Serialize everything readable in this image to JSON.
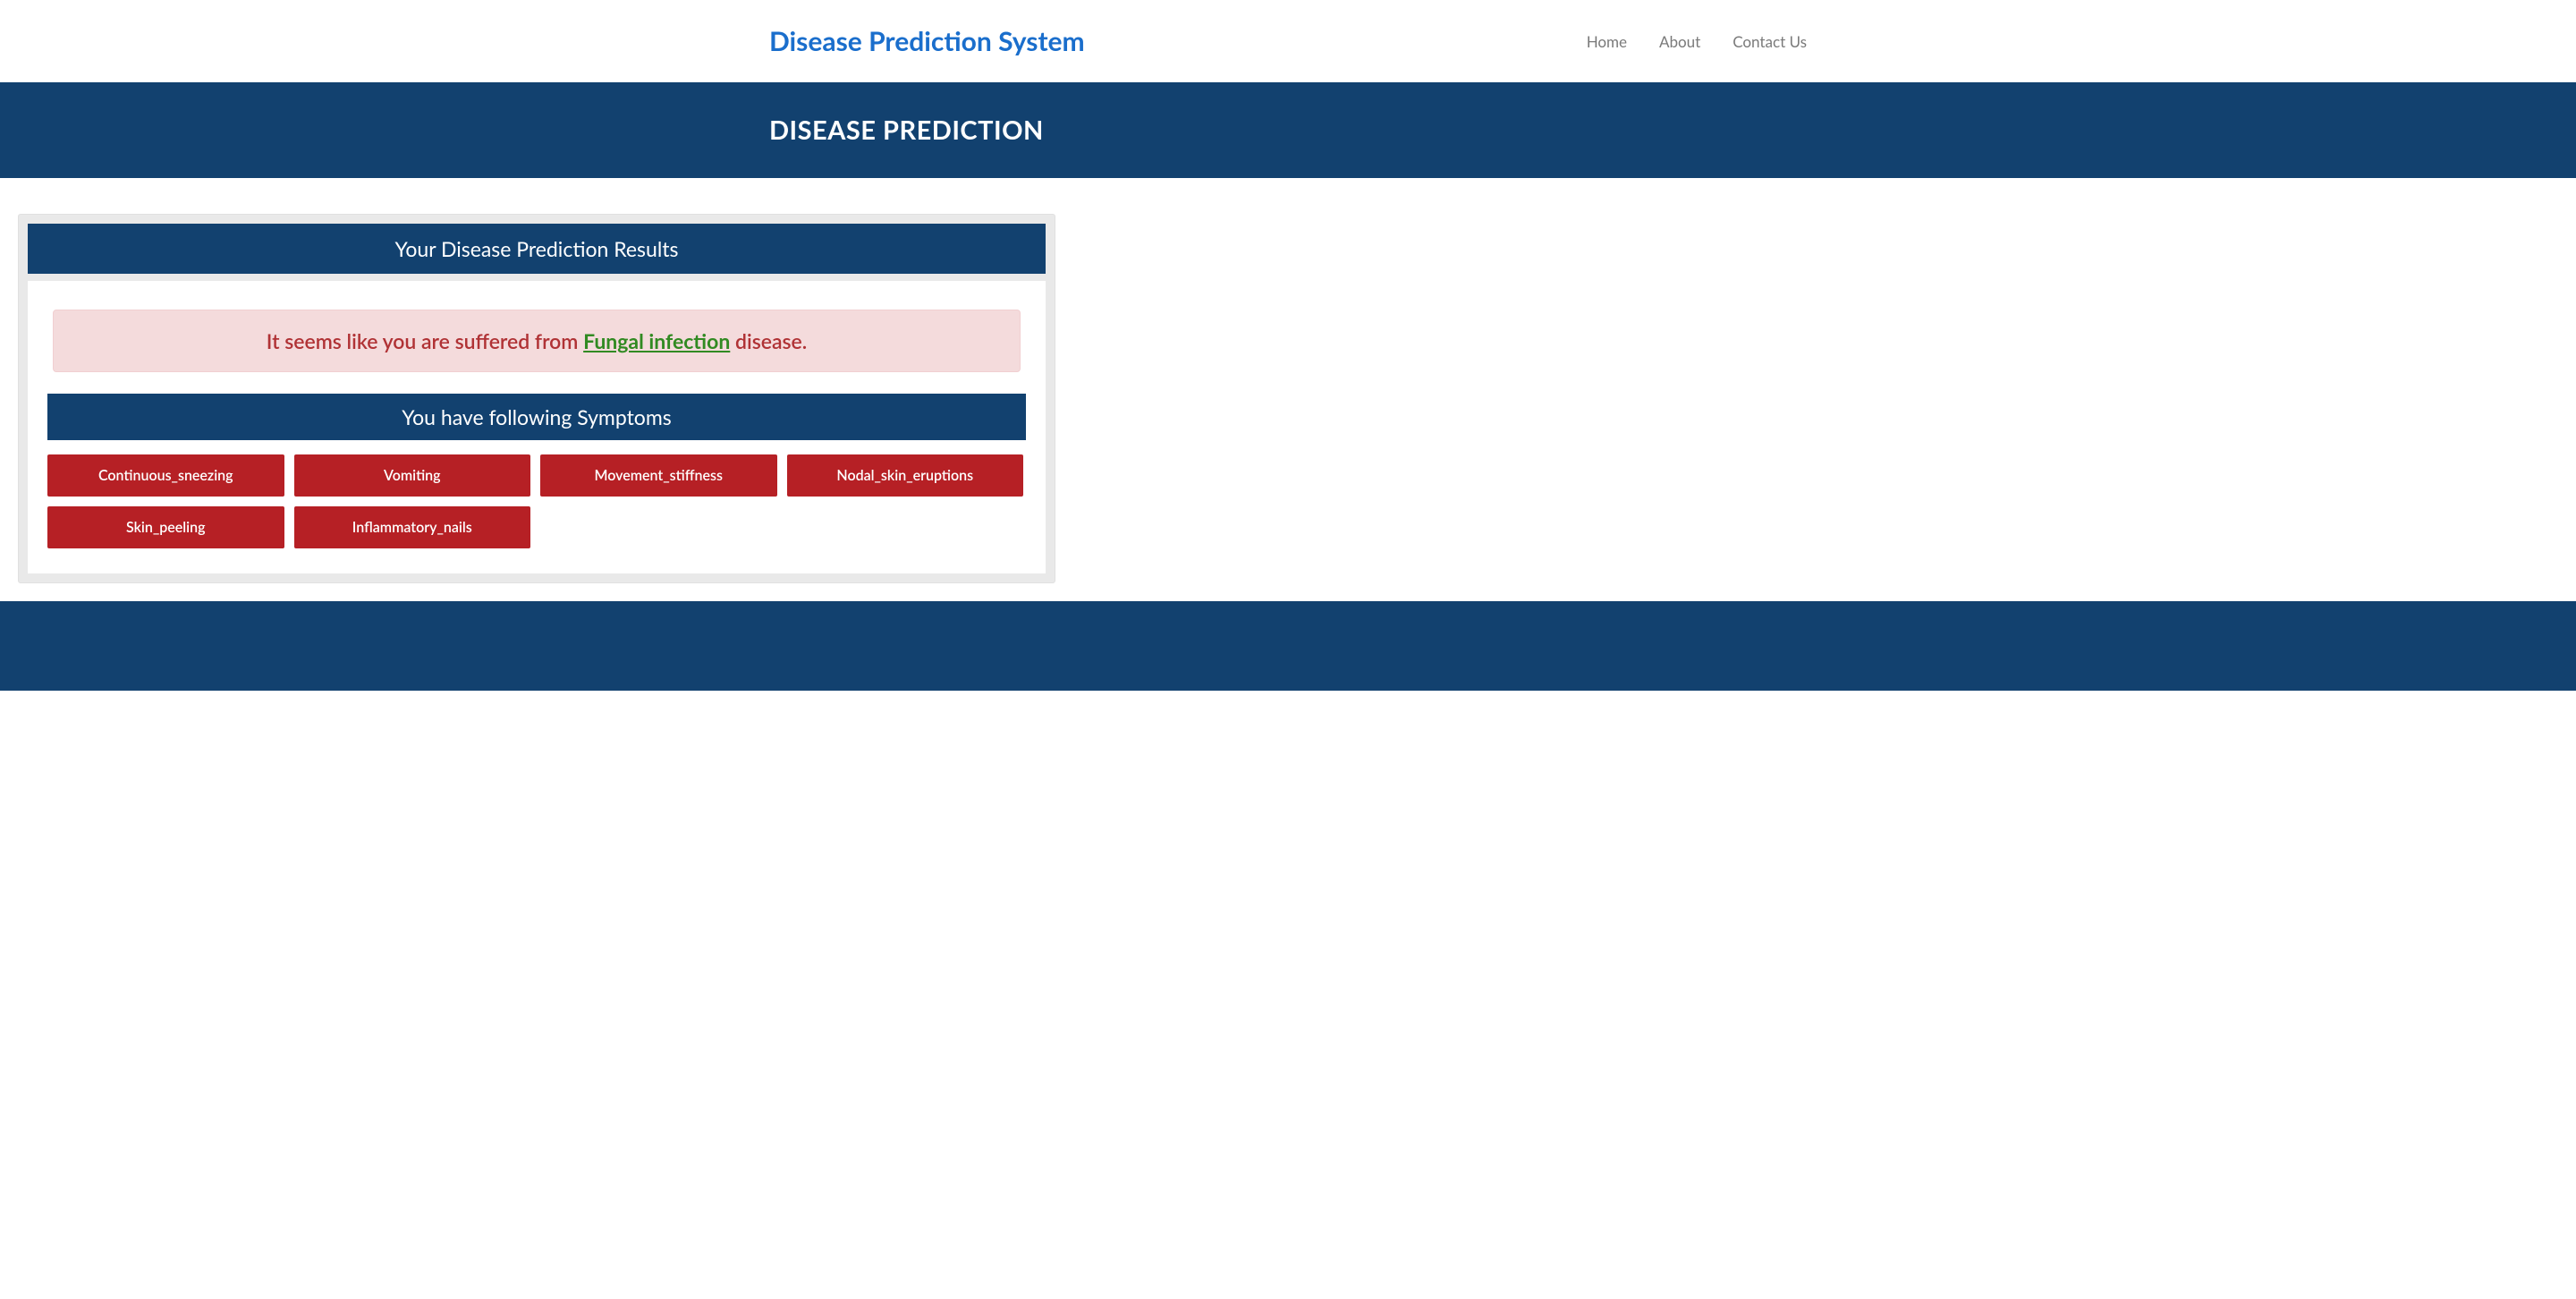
{
  "navbar": {
    "brand": "Disease Prediction System",
    "links": [
      {
        "label": "Home"
      },
      {
        "label": "About"
      },
      {
        "label": "Contact Us"
      }
    ]
  },
  "page_heading": "DISEASE PREDICTION",
  "card": {
    "title": "Your Disease Prediction Results",
    "alert_prefix": "It seems like you are suffered from ",
    "disease_name": "Fungal infection",
    "alert_suffix": " disease.",
    "symptoms_header": "You have following Symptoms",
    "symptoms": [
      "Continuous_sneezing",
      "Vomiting",
      "Movement_stiffness",
      "Nodal_skin_eruptions",
      "Skin_peeling",
      "Inflammatory_nails"
    ]
  },
  "colors": {
    "brand_blue": "#1a6ecc",
    "band_navy": "#12416f",
    "alert_bg": "#f4dbdc",
    "alert_text": "#b03235",
    "disease_link": "#318a22",
    "badge_red": "#b62025",
    "card_outer": "#e9e9e9",
    "nav_link": "#7a7a7a"
  }
}
